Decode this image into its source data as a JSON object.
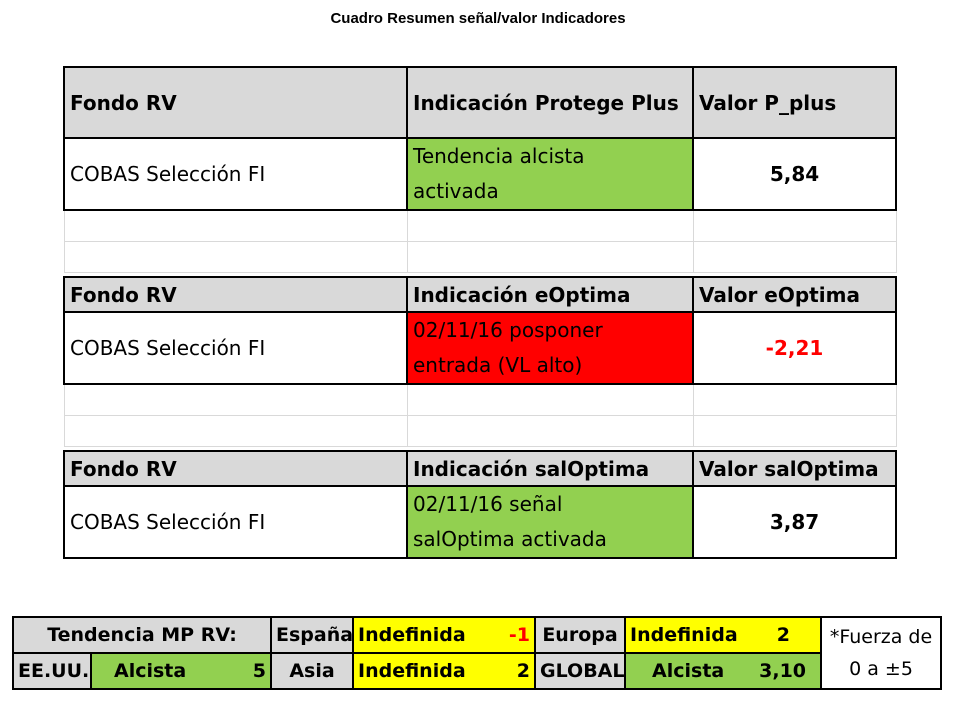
{
  "page": {
    "title": "Cuadro Resumen señal/valor Indicadores"
  },
  "tables": [
    {
      "headers": [
        "Fondo RV",
        "Indicación Protege Plus",
        "Valor P_plus"
      ],
      "fund": "COBAS Selección FI",
      "indication_line1": "Tendencia alcista",
      "indication_line2": "activada",
      "value": "5,84",
      "signal_color": "#92d050"
    },
    {
      "headers": [
        "Fondo RV",
        "Indicación eOptima",
        "Valor eOptima"
      ],
      "fund": "COBAS Selección FI",
      "indication_line1": "02/11/16 posponer",
      "indication_line2": "entrada (VL alto)",
      "value": "-2,21",
      "signal_color": "#ff0000"
    },
    {
      "headers": [
        "Fondo RV",
        "Indicación salOptima",
        "Valor salOptima"
      ],
      "fund": "COBAS Selección FI",
      "indication_line1": "02/11/16 señal",
      "indication_line2": "salOptima activada",
      "value": "3,87",
      "signal_color": "#92d050"
    }
  ],
  "summary": {
    "title": "Tendencia MP RV:",
    "rows": [
      [
        {
          "region": "España",
          "trend": "Indefinida",
          "score": "-1"
        },
        {
          "region": "Europa",
          "trend": "Indefinida",
          "score": "2"
        }
      ],
      [
        {
          "region": "EE.UU.",
          "trend": "Alcista",
          "score": "5"
        },
        {
          "region": "Asia",
          "trend": "Indefinida",
          "score": "2"
        },
        {
          "region": "GLOBAL",
          "trend": "Alcista",
          "score": "3,10"
        }
      ]
    ],
    "note_line1": "*Fuerza de",
    "note_line2": "0 a ±5"
  }
}
